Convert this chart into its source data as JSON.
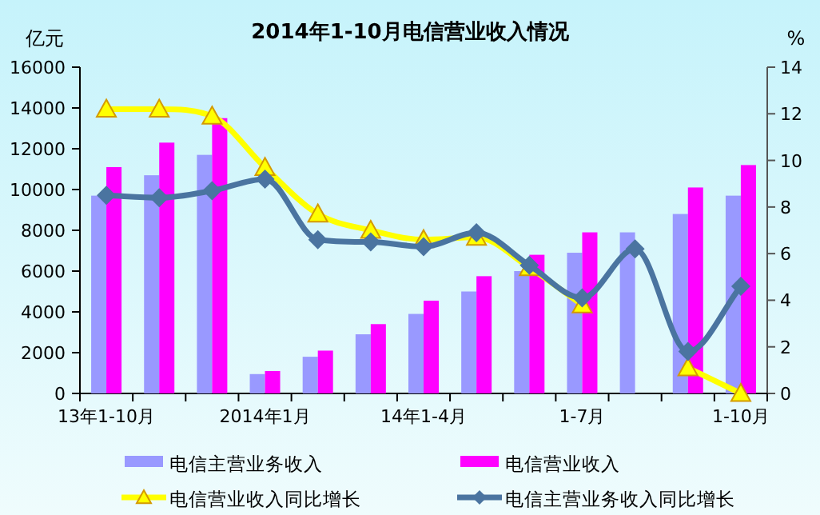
{
  "chart_data": {
    "type": "bar",
    "title": "2014年1-10月电信营业收入情况",
    "ylabel": "亿元",
    "y2label": "%",
    "categories": [
      "13年1-10月",
      null,
      null,
      "2014年1月",
      null,
      null,
      "14年1-4月",
      null,
      null,
      "1-7月",
      null,
      null,
      "1-10月"
    ],
    "series": [
      {
        "name": "电信主营业务收入",
        "color": "#9999ff",
        "values": [
          9700,
          10700,
          11700,
          950,
          1800,
          2900,
          3900,
          5000,
          6000,
          6900,
          7900,
          8800,
          9700
        ]
      },
      {
        "name": "电信营业收入",
        "color": "#ff00ff",
        "values": [
          11100,
          12300,
          13500,
          1100,
          2100,
          3400,
          4550,
          5750,
          6800,
          7900,
          null,
          10100,
          11200
        ]
      },
      {
        "name": "电信营业收入同比增长",
        "type": "line",
        "axis": "y2",
        "color": "#ffff00",
        "marker": "triangle",
        "values": [
          12.2,
          12.2,
          11.9,
          9.7,
          7.7,
          7.0,
          6.6,
          6.7,
          5.4,
          3.8,
          null,
          1.1,
          0
        ]
      },
      {
        "name": "电信主营业务收入同比增长",
        "type": "line",
        "axis": "y2",
        "color": "#4a74a0",
        "marker": "diamond",
        "values": [
          8.5,
          8.4,
          8.7,
          9.2,
          6.6,
          6.5,
          6.3,
          6.9,
          5.5,
          4.1,
          6.2,
          1.8,
          4.6
        ]
      }
    ],
    "ylim": [
      0,
      16000
    ],
    "yticks": [
      0,
      2000,
      4000,
      6000,
      8000,
      10000,
      12000,
      14000,
      16000
    ],
    "y2lim": [
      0,
      14
    ],
    "y2ticks": [
      0,
      2,
      4,
      6,
      8,
      10,
      12,
      14
    ],
    "legend": "bottom"
  }
}
